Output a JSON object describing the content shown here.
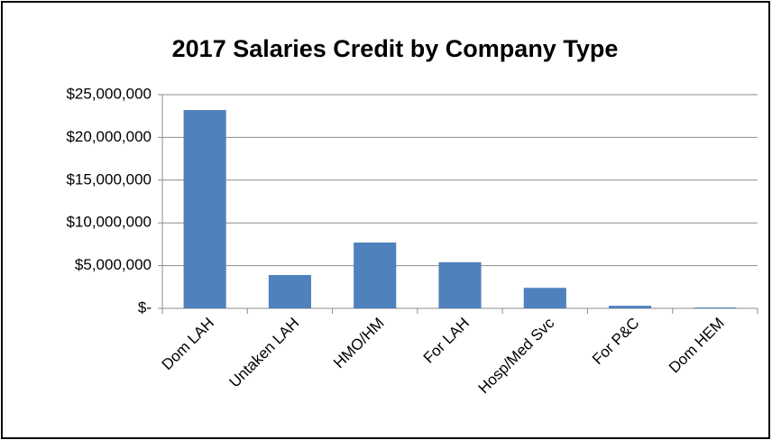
{
  "chart_data": {
    "type": "bar",
    "title": "2017 Salaries Credit by Company Type",
    "categories": [
      "Dom LAH",
      "Untaken LAH",
      "HMO/HM",
      "For LAH",
      "Hosp/Med Svc",
      "For P&C",
      "Dom HEM"
    ],
    "values": [
      23200000,
      3900000,
      7700000,
      5400000,
      2400000,
      300000,
      100000
    ],
    "color": "#4f81bd",
    "ylim": [
      0,
      25000000
    ],
    "yticks": [
      {
        "value": 0,
        "label": "$-"
      },
      {
        "value": 5000000,
        "label": "$5,000,000"
      },
      {
        "value": 10000000,
        "label": "$10,000,000"
      },
      {
        "value": 15000000,
        "label": "$15,000,000"
      },
      {
        "value": 20000000,
        "label": "$20,000,000"
      },
      {
        "value": 25000000,
        "label": "$25,000,000"
      }
    ],
    "grid": true
  }
}
